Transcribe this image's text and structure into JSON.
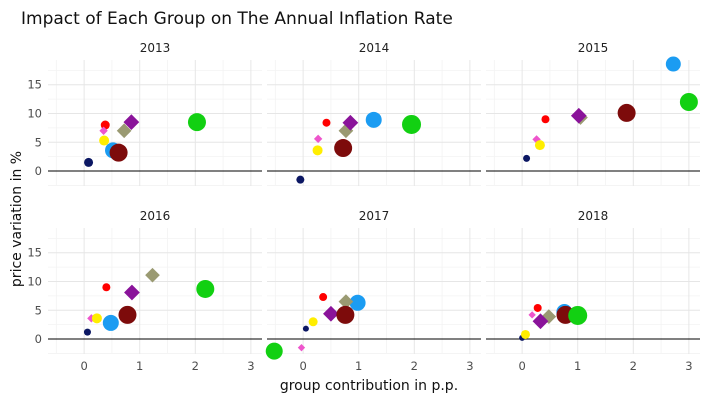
{
  "chart_data": {
    "type": "scatter",
    "title": "Impact of Each Group on The Annual Inflation Rate",
    "xlabel": "group contribution in p.p.",
    "ylabel": "price variation in %",
    "xlim": [
      -0.65,
      3.2
    ],
    "ylim": [
      -2.6,
      19.3
    ],
    "x_ticks": [
      0,
      1,
      2,
      3
    ],
    "y_ticks": [
      0,
      5,
      10,
      15
    ],
    "grid": true,
    "reference_line_y": 0,
    "colors": {
      "navy": "#0b1763",
      "red": "#ff0000",
      "pink": "#ee55cc",
      "yellow": "#ffee00",
      "blue": "#1b9cf2",
      "khaki": "#9a9a72",
      "purple": "#8a139a",
      "darkred": "#7d0b0b",
      "green": "#12d012"
    },
    "panels": [
      {
        "year": "2013",
        "points": [
          {
            "x": 0.08,
            "y": 1.5,
            "color": "navy",
            "size": 4.5,
            "shape": "circle"
          },
          {
            "x": 0.38,
            "y": 8.0,
            "color": "red",
            "size": 4.5,
            "shape": "circle"
          },
          {
            "x": 0.35,
            "y": 7.0,
            "color": "pink",
            "size": 4.0,
            "shape": "diamond"
          },
          {
            "x": 0.36,
            "y": 5.3,
            "color": "yellow",
            "size": 5.0,
            "shape": "circle"
          },
          {
            "x": 0.52,
            "y": 3.6,
            "color": "blue",
            "size": 8.0,
            "shape": "circle"
          },
          {
            "x": 0.72,
            "y": 7.0,
            "color": "khaki",
            "size": 7.0,
            "shape": "diamond"
          },
          {
            "x": 0.85,
            "y": 8.5,
            "color": "purple",
            "size": 7.5,
            "shape": "diamond"
          },
          {
            "x": 0.62,
            "y": 3.2,
            "color": "darkred",
            "size": 9.0,
            "shape": "circle"
          },
          {
            "x": 2.03,
            "y": 8.5,
            "color": "green",
            "size": 9.0,
            "shape": "circle"
          }
        ]
      },
      {
        "year": "2014",
        "points": [
          {
            "x": -0.05,
            "y": -1.5,
            "color": "navy",
            "size": 4.0,
            "shape": "circle"
          },
          {
            "x": 0.42,
            "y": 8.4,
            "color": "red",
            "size": 4.0,
            "shape": "circle"
          },
          {
            "x": 0.27,
            "y": 5.6,
            "color": "pink",
            "size": 4.0,
            "shape": "diamond"
          },
          {
            "x": 0.26,
            "y": 3.6,
            "color": "yellow",
            "size": 5.0,
            "shape": "circle"
          },
          {
            "x": 1.27,
            "y": 8.9,
            "color": "blue",
            "size": 8.0,
            "shape": "circle"
          },
          {
            "x": 0.77,
            "y": 7.0,
            "color": "khaki",
            "size": 7.0,
            "shape": "diamond"
          },
          {
            "x": 0.85,
            "y": 8.4,
            "color": "purple",
            "size": 7.5,
            "shape": "diamond"
          },
          {
            "x": 0.72,
            "y": 4.0,
            "color": "darkred",
            "size": 9.0,
            "shape": "circle"
          },
          {
            "x": 1.95,
            "y": 8.1,
            "color": "green",
            "size": 9.5,
            "shape": "circle"
          }
        ]
      },
      {
        "year": "2015",
        "points": [
          {
            "x": 0.08,
            "y": 2.2,
            "color": "navy",
            "size": 3.5,
            "shape": "circle"
          },
          {
            "x": 0.42,
            "y": 9.0,
            "color": "red",
            "size": 4.0,
            "shape": "circle"
          },
          {
            "x": 0.26,
            "y": 5.5,
            "color": "pink",
            "size": 4.0,
            "shape": "diamond"
          },
          {
            "x": 0.32,
            "y": 4.5,
            "color": "yellow",
            "size": 5.0,
            "shape": "circle"
          },
          {
            "x": 2.72,
            "y": 18.6,
            "color": "blue",
            "size": 7.5,
            "shape": "circle"
          },
          {
            "x": 1.05,
            "y": 9.3,
            "color": "khaki",
            "size": 7.0,
            "shape": "diamond"
          },
          {
            "x": 1.02,
            "y": 9.6,
            "color": "purple",
            "size": 7.5,
            "shape": "diamond"
          },
          {
            "x": 1.88,
            "y": 10.1,
            "color": "darkred",
            "size": 9.0,
            "shape": "circle"
          },
          {
            "x": 3.0,
            "y": 12.0,
            "color": "green",
            "size": 9.0,
            "shape": "circle"
          }
        ]
      },
      {
        "year": "2016",
        "points": [
          {
            "x": 0.06,
            "y": 1.2,
            "color": "navy",
            "size": 3.5,
            "shape": "circle"
          },
          {
            "x": 0.4,
            "y": 9.0,
            "color": "red",
            "size": 4.0,
            "shape": "circle"
          },
          {
            "x": 0.13,
            "y": 3.6,
            "color": "pink",
            "size": 4.0,
            "shape": "diamond"
          },
          {
            "x": 0.23,
            "y": 3.6,
            "color": "yellow",
            "size": 5.0,
            "shape": "circle"
          },
          {
            "x": 0.48,
            "y": 2.8,
            "color": "blue",
            "size": 8.0,
            "shape": "circle"
          },
          {
            "x": 1.23,
            "y": 11.1,
            "color": "khaki",
            "size": 7.0,
            "shape": "diamond"
          },
          {
            "x": 0.86,
            "y": 8.1,
            "color": "purple",
            "size": 7.5,
            "shape": "diamond"
          },
          {
            "x": 0.78,
            "y": 4.2,
            "color": "darkred",
            "size": 9.0,
            "shape": "circle"
          },
          {
            "x": 2.18,
            "y": 8.7,
            "color": "green",
            "size": 9.0,
            "shape": "circle"
          }
        ]
      },
      {
        "year": "2017",
        "points": [
          {
            "x": 0.05,
            "y": 1.8,
            "color": "navy",
            "size": 3.0,
            "shape": "circle"
          },
          {
            "x": 0.36,
            "y": 7.3,
            "color": "red",
            "size": 4.0,
            "shape": "circle"
          },
          {
            "x": -0.03,
            "y": -1.5,
            "color": "pink",
            "size": 3.5,
            "shape": "diamond"
          },
          {
            "x": 0.18,
            "y": 3.0,
            "color": "yellow",
            "size": 4.5,
            "shape": "circle"
          },
          {
            "x": 0.98,
            "y": 6.3,
            "color": "blue",
            "size": 8.0,
            "shape": "circle"
          },
          {
            "x": 0.77,
            "y": 6.5,
            "color": "khaki",
            "size": 7.0,
            "shape": "diamond"
          },
          {
            "x": 0.5,
            "y": 4.4,
            "color": "purple",
            "size": 7.5,
            "shape": "diamond"
          },
          {
            "x": 0.76,
            "y": 4.2,
            "color": "darkred",
            "size": 9.0,
            "shape": "circle"
          },
          {
            "x": -0.52,
            "y": -2.1,
            "color": "green",
            "size": 8.5,
            "shape": "circle"
          }
        ]
      },
      {
        "year": "2018",
        "points": [
          {
            "x": 0.0,
            "y": 0.2,
            "color": "navy",
            "size": 3.0,
            "shape": "circle"
          },
          {
            "x": 0.28,
            "y": 5.4,
            "color": "red",
            "size": 4.0,
            "shape": "circle"
          },
          {
            "x": 0.18,
            "y": 4.2,
            "color": "pink",
            "size": 3.5,
            "shape": "diamond"
          },
          {
            "x": 0.06,
            "y": 0.8,
            "color": "yellow",
            "size": 4.5,
            "shape": "circle"
          },
          {
            "x": 0.76,
            "y": 4.7,
            "color": "blue",
            "size": 8.0,
            "shape": "circle"
          },
          {
            "x": 0.48,
            "y": 3.9,
            "color": "khaki",
            "size": 7.0,
            "shape": "diamond"
          },
          {
            "x": 0.33,
            "y": 3.1,
            "color": "purple",
            "size": 7.5,
            "shape": "diamond"
          },
          {
            "x": 0.78,
            "y": 4.2,
            "color": "darkred",
            "size": 9.0,
            "shape": "circle"
          },
          {
            "x": 1.0,
            "y": 4.1,
            "color": "green",
            "size": 9.5,
            "shape": "circle"
          }
        ]
      }
    ]
  }
}
